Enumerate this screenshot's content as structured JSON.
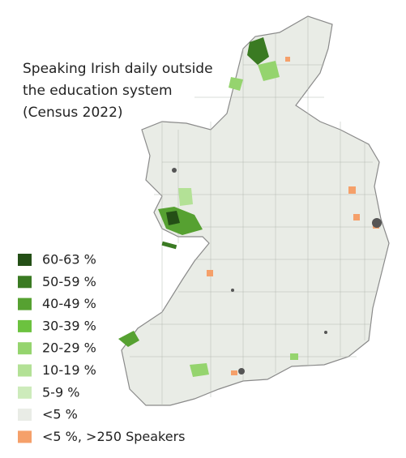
{
  "title": [
    "Speaking Irish daily outside",
    "the education system",
    "(Census 2022)"
  ],
  "legend": [
    {
      "label": "60-63 %",
      "color": "#244f16"
    },
    {
      "label": "50-59 %",
      "color": "#3a7a22"
    },
    {
      "label": "40-49 %",
      "color": "#56a131"
    },
    {
      "label": "30-39 %",
      "color": "#6cc23f"
    },
    {
      "label": "20-29 %",
      "color": "#95d46e"
    },
    {
      "label": "10-19 %",
      "color": "#b3e196"
    },
    {
      "label": "5-9 %",
      "color": "#cdebbb"
    },
    {
      "label": "<5 %",
      "color": "#e9ece6"
    },
    {
      "label": "<5 %,  >250 Speakers",
      "color": "#f5a06a"
    }
  ]
}
